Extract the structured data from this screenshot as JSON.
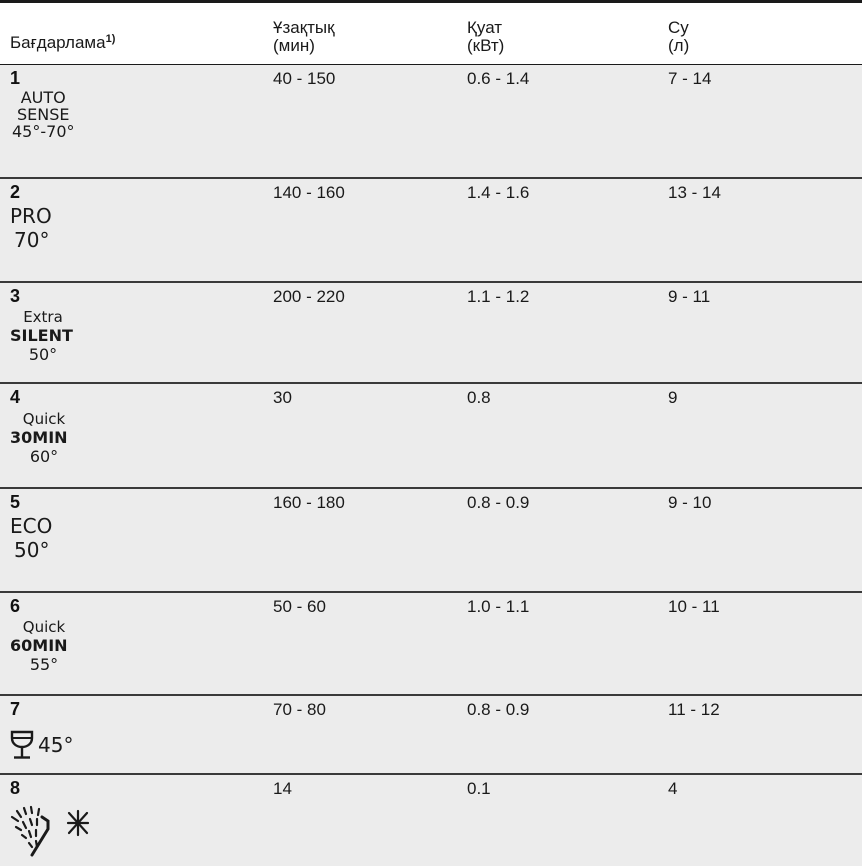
{
  "header": {
    "program": "Бағдарлама",
    "program_sup": "1)",
    "duration_line1": "Ұзақтық",
    "duration_line2": "(мин)",
    "energy_line1": "Қуат",
    "energy_line2": "(кВт)",
    "water_line1": "Су",
    "water_line2": "(л)"
  },
  "rows": [
    {
      "num": "1",
      "line1": "AUTO",
      "line2": "SENSE",
      "line3": "45°-70°",
      "duration": "40 - 150",
      "energy": "0.6 - 1.4",
      "water": "7 - 14"
    },
    {
      "num": "2",
      "line1": "PRO",
      "line2": "70°",
      "duration": "140 - 160",
      "energy": "1.4 - 1.6",
      "water": "13 - 14"
    },
    {
      "num": "3",
      "line1": "Extra",
      "line2": "SILENT",
      "line3": "50°",
      "duration": "200 - 220",
      "energy": "1.1 - 1.2",
      "water": "9 - 11"
    },
    {
      "num": "4",
      "line1": "Quick",
      "line2": "30MIN",
      "line3": "60°",
      "duration": "30",
      "energy": "0.8",
      "water": "9"
    },
    {
      "num": "5",
      "line1": "ECO",
      "line2": "50°",
      "duration": "160 - 180",
      "energy": "0.8 - 0.9",
      "water": "9 - 10"
    },
    {
      "num": "6",
      "line1": "Quick",
      "line2": "60MIN",
      "line3": "55°",
      "duration": "50 - 60",
      "energy": "1.0 - 1.1",
      "water": "10 - 11"
    },
    {
      "num": "7",
      "line1": "45°",
      "icon": "glass-icon",
      "duration": "70 - 80",
      "energy": "0.8 - 0.9",
      "water": "11 - 12"
    },
    {
      "num": "8",
      "icon": "rinse-and-hold-icon",
      "duration": "14",
      "energy": "0.1",
      "water": "4"
    }
  ]
}
